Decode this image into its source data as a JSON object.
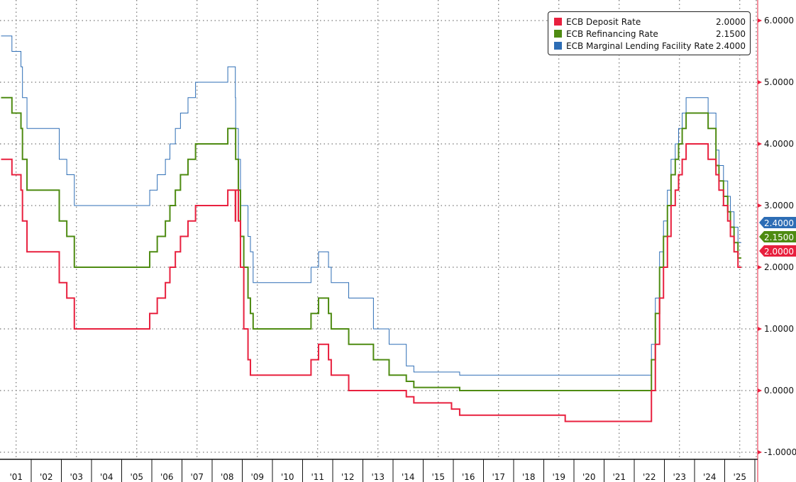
{
  "chart_data": {
    "type": "line",
    "step": true,
    "title": "",
    "xlabel": "",
    "ylabel": "",
    "xlim": [
      2001.0,
      2026.0
    ],
    "ylim": [
      -1.0,
      6.0
    ],
    "y_ticks": [
      6,
      5,
      4,
      3,
      2,
      1,
      0,
      -1
    ],
    "y_tick_labels": [
      "6.0000",
      "5.0000",
      "4.0000",
      "3.0000",
      "2.0000",
      "1.0000",
      "0.0000",
      "-1.0000"
    ],
    "x_tick_labels": [
      "'01",
      "'02",
      "'03",
      "'04",
      "'05",
      "'06",
      "'07",
      "'08",
      "'09",
      "'10",
      "'11",
      "'12",
      "'13",
      "'14",
      "'15",
      "'16",
      "'17",
      "'18",
      "'19",
      "'20",
      "'21",
      "'22",
      "'23",
      "'24",
      "'25"
    ],
    "grid": true,
    "legend_position": "top-right",
    "y_axis_side": "right",
    "series": [
      {
        "name": "ECB Deposit Rate",
        "last": "2.0000",
        "color": "#e8203e"
      },
      {
        "name": "ECB Refinancing Rate",
        "last": "2.1500",
        "color": "#4e8b12"
      },
      {
        "name": "ECB Marginal Lending Facility Rate",
        "last": "2.4000",
        "color": "#2d6db5"
      }
    ],
    "steps_columns": [
      "year",
      "deposit",
      "refinancing",
      "marginal_lending"
    ],
    "steps": [
      [
        2001.0,
        3.75,
        4.75,
        5.75
      ],
      [
        2001.36,
        3.5,
        4.5,
        5.5
      ],
      [
        2001.66,
        3.25,
        4.25,
        5.25
      ],
      [
        2001.71,
        2.75,
        3.75,
        4.75
      ],
      [
        2001.86,
        2.25,
        3.25,
        4.25
      ],
      [
        2002.93,
        1.75,
        2.75,
        3.75
      ],
      [
        2003.18,
        1.5,
        2.5,
        3.5
      ],
      [
        2003.43,
        1.0,
        2.0,
        3.0
      ],
      [
        2005.93,
        1.25,
        2.25,
        3.25
      ],
      [
        2006.18,
        1.5,
        2.5,
        3.5
      ],
      [
        2006.45,
        1.75,
        2.75,
        3.75
      ],
      [
        2006.6,
        2.0,
        3.0,
        4.0
      ],
      [
        2006.78,
        2.25,
        3.25,
        4.25
      ],
      [
        2006.95,
        2.5,
        3.5,
        4.5
      ],
      [
        2007.2,
        2.75,
        3.75,
        4.75
      ],
      [
        2007.45,
        3.0,
        4.0,
        5.0
      ],
      [
        2008.52,
        3.25,
        4.25,
        5.25
      ],
      [
        2008.77,
        2.75,
        4.25,
        4.75
      ],
      [
        2008.78,
        3.25,
        3.75,
        4.25
      ],
      [
        2008.87,
        2.75,
        3.25,
        3.75
      ],
      [
        2008.94,
        2.0,
        2.5,
        3.0
      ],
      [
        2009.05,
        1.0,
        2.0,
        3.0
      ],
      [
        2009.19,
        0.5,
        1.5,
        2.5
      ],
      [
        2009.27,
        0.25,
        1.25,
        2.25
      ],
      [
        2009.36,
        0.25,
        1.0,
        1.75
      ],
      [
        2011.28,
        0.5,
        1.25,
        2.0
      ],
      [
        2011.53,
        0.75,
        1.5,
        2.25
      ],
      [
        2011.86,
        0.5,
        1.25,
        2.0
      ],
      [
        2011.95,
        0.25,
        1.0,
        1.75
      ],
      [
        2012.53,
        0.0,
        0.75,
        1.5
      ],
      [
        2013.35,
        0.0,
        0.5,
        1.0
      ],
      [
        2013.87,
        0.0,
        0.25,
        0.75
      ],
      [
        2014.44,
        -0.1,
        0.15,
        0.4
      ],
      [
        2014.69,
        -0.2,
        0.05,
        0.3
      ],
      [
        2015.94,
        -0.3,
        0.05,
        0.3
      ],
      [
        2016.21,
        -0.4,
        0.0,
        0.25
      ],
      [
        2019.71,
        -0.5,
        0.0,
        0.25
      ],
      [
        2022.57,
        0.0,
        0.5,
        0.75
      ],
      [
        2022.7,
        0.75,
        1.25,
        1.5
      ],
      [
        2022.84,
        1.5,
        2.0,
        2.25
      ],
      [
        2022.97,
        2.0,
        2.5,
        2.75
      ],
      [
        2023.1,
        2.5,
        3.0,
        3.25
      ],
      [
        2023.22,
        3.0,
        3.5,
        3.75
      ],
      [
        2023.36,
        3.25,
        3.75,
        4.0
      ],
      [
        2023.47,
        3.5,
        4.0,
        4.25
      ],
      [
        2023.59,
        3.75,
        4.25,
        4.5
      ],
      [
        2023.72,
        4.0,
        4.5,
        4.75
      ],
      [
        2024.45,
        3.75,
        4.25,
        4.5
      ],
      [
        2024.71,
        3.5,
        3.65,
        3.9
      ],
      [
        2024.81,
        3.25,
        3.4,
        3.65
      ],
      [
        2024.96,
        3.0,
        3.15,
        3.4
      ],
      [
        2025.1,
        2.75,
        2.9,
        3.15
      ],
      [
        2025.19,
        2.5,
        2.65,
        2.9
      ],
      [
        2025.31,
        2.25,
        2.4,
        2.65
      ],
      [
        2025.44,
        2.0,
        2.15,
        2.4
      ],
      [
        2025.55,
        2.0,
        2.15,
        2.4
      ]
    ]
  }
}
